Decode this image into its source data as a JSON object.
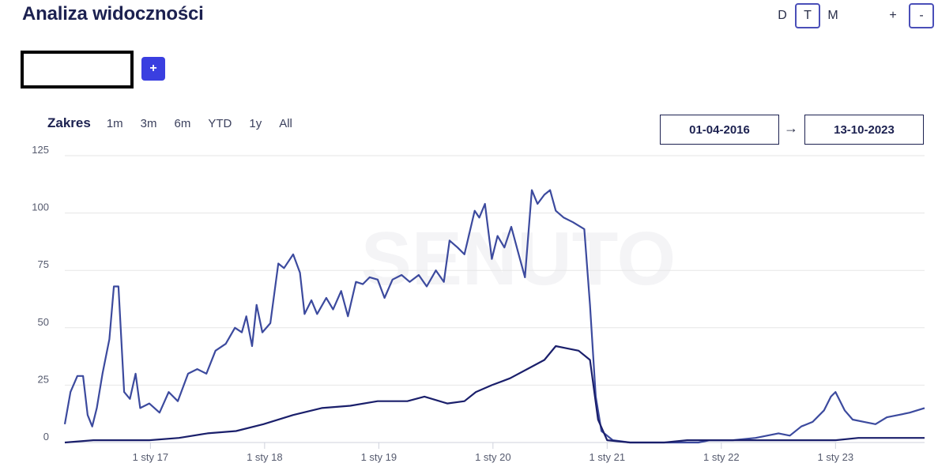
{
  "header": {
    "title": "Analiza widoczności"
  },
  "granularity": [
    "D",
    "T",
    "M"
  ],
  "granularity_active": "T",
  "zoom": {
    "in_label": "+",
    "out_label": "-"
  },
  "add_button_label": "+",
  "range": {
    "label": "Zakres",
    "buttons": [
      "1m",
      "3m",
      "6m",
      "YTD",
      "1y",
      "All"
    ],
    "date_from": "01-04-2016",
    "arrow": "→",
    "date_to": "13-10-2023"
  },
  "chart_data": {
    "type": "line",
    "ylim": [
      0,
      125
    ],
    "xlim": [
      2016.25,
      2023.78
    ],
    "y_ticks": [
      0,
      25,
      50,
      75,
      100,
      125
    ],
    "x_ticks": [
      {
        "x": 2017.0,
        "label": "1 sty 17"
      },
      {
        "x": 2018.0,
        "label": "1 sty 18"
      },
      {
        "x": 2019.0,
        "label": "1 sty 19"
      },
      {
        "x": 2020.0,
        "label": "1 sty 20"
      },
      {
        "x": 2021.0,
        "label": "1 sty 21"
      },
      {
        "x": 2022.0,
        "label": "1 sty 22"
      },
      {
        "x": 2023.0,
        "label": "1 sty 23"
      }
    ],
    "watermark": "SENUTO",
    "grid": true,
    "colors": {
      "series1": "#3c4a9e",
      "series2": "#1a1f6b",
      "grid": "#e6e6e6",
      "axis": "#cfd2dc"
    },
    "series": [
      {
        "values": [
          [
            2016.25,
            8
          ],
          [
            2016.3,
            22
          ],
          [
            2016.36,
            29
          ],
          [
            2016.41,
            29
          ],
          [
            2016.45,
            12
          ],
          [
            2016.49,
            7
          ],
          [
            2016.53,
            15
          ],
          [
            2016.58,
            30
          ],
          [
            2016.64,
            45
          ],
          [
            2016.68,
            68
          ],
          [
            2016.72,
            68
          ],
          [
            2016.77,
            22
          ],
          [
            2016.82,
            19
          ],
          [
            2016.87,
            30
          ],
          [
            2016.91,
            15
          ],
          [
            2016.99,
            17
          ],
          [
            2017.08,
            13
          ],
          [
            2017.16,
            22
          ],
          [
            2017.24,
            18
          ],
          [
            2017.33,
            30
          ],
          [
            2017.41,
            32
          ],
          [
            2017.49,
            30
          ],
          [
            2017.57,
            40
          ],
          [
            2017.66,
            43
          ],
          [
            2017.74,
            50
          ],
          [
            2017.8,
            48
          ],
          [
            2017.84,
            55
          ],
          [
            2017.89,
            42
          ],
          [
            2017.93,
            60
          ],
          [
            2017.98,
            48
          ],
          [
            2018.05,
            52
          ],
          [
            2018.12,
            78
          ],
          [
            2018.17,
            76
          ],
          [
            2018.25,
            82
          ],
          [
            2018.31,
            74
          ],
          [
            2018.35,
            56
          ],
          [
            2018.41,
            62
          ],
          [
            2018.46,
            56
          ],
          [
            2018.54,
            63
          ],
          [
            2018.6,
            58
          ],
          [
            2018.67,
            66
          ],
          [
            2018.73,
            55
          ],
          [
            2018.8,
            70
          ],
          [
            2018.86,
            69
          ],
          [
            2018.92,
            72
          ],
          [
            2018.99,
            71
          ],
          [
            2019.05,
            63
          ],
          [
            2019.12,
            71
          ],
          [
            2019.2,
            73
          ],
          [
            2019.27,
            70
          ],
          [
            2019.35,
            73
          ],
          [
            2019.42,
            68
          ],
          [
            2019.5,
            75
          ],
          [
            2019.57,
            70
          ],
          [
            2019.62,
            88
          ],
          [
            2019.69,
            85
          ],
          [
            2019.75,
            82
          ],
          [
            2019.84,
            101
          ],
          [
            2019.88,
            98
          ],
          [
            2019.93,
            104
          ],
          [
            2019.99,
            80
          ],
          [
            2020.04,
            90
          ],
          [
            2020.1,
            85
          ],
          [
            2020.16,
            94
          ],
          [
            2020.22,
            83
          ],
          [
            2020.28,
            72
          ],
          [
            2020.34,
            110
          ],
          [
            2020.39,
            104
          ],
          [
            2020.45,
            108
          ],
          [
            2020.5,
            110
          ],
          [
            2020.55,
            101
          ],
          [
            2020.62,
            98
          ],
          [
            2020.7,
            96
          ],
          [
            2020.8,
            93
          ],
          [
            2020.85,
            60
          ],
          [
            2020.9,
            20
          ],
          [
            2020.95,
            5
          ],
          [
            2021.05,
            1
          ],
          [
            2021.2,
            0
          ],
          [
            2021.4,
            0
          ],
          [
            2021.6,
            0
          ],
          [
            2021.8,
            0
          ],
          [
            2021.9,
            1
          ],
          [
            2022.1,
            1
          ],
          [
            2022.3,
            2
          ],
          [
            2022.5,
            4
          ],
          [
            2022.6,
            3
          ],
          [
            2022.7,
            7
          ],
          [
            2022.8,
            9
          ],
          [
            2022.9,
            14
          ],
          [
            2022.96,
            20
          ],
          [
            2023.0,
            22
          ],
          [
            2023.08,
            14
          ],
          [
            2023.15,
            10
          ],
          [
            2023.25,
            9
          ],
          [
            2023.35,
            8
          ],
          [
            2023.45,
            11
          ],
          [
            2023.55,
            12
          ],
          [
            2023.65,
            13
          ],
          [
            2023.78,
            15
          ]
        ]
      },
      {
        "values": [
          [
            2016.25,
            0
          ],
          [
            2016.5,
            1
          ],
          [
            2016.75,
            1
          ],
          [
            2016.99,
            1
          ],
          [
            2017.25,
            2
          ],
          [
            2017.5,
            4
          ],
          [
            2017.75,
            5
          ],
          [
            2017.99,
            8
          ],
          [
            2018.25,
            12
          ],
          [
            2018.5,
            15
          ],
          [
            2018.75,
            16
          ],
          [
            2018.99,
            18
          ],
          [
            2019.25,
            18
          ],
          [
            2019.4,
            20
          ],
          [
            2019.6,
            17
          ],
          [
            2019.75,
            18
          ],
          [
            2019.85,
            22
          ],
          [
            2019.99,
            25
          ],
          [
            2020.15,
            28
          ],
          [
            2020.3,
            32
          ],
          [
            2020.45,
            36
          ],
          [
            2020.55,
            42
          ],
          [
            2020.65,
            41
          ],
          [
            2020.75,
            40
          ],
          [
            2020.85,
            36
          ],
          [
            2020.92,
            10
          ],
          [
            2021.0,
            1
          ],
          [
            2021.2,
            0
          ],
          [
            2021.5,
            0
          ],
          [
            2021.7,
            1
          ],
          [
            2021.9,
            1
          ],
          [
            2022.2,
            1
          ],
          [
            2022.5,
            1
          ],
          [
            2022.8,
            1
          ],
          [
            2023.0,
            1
          ],
          [
            2023.2,
            2
          ],
          [
            2023.5,
            2
          ],
          [
            2023.78,
            2
          ]
        ]
      }
    ]
  }
}
